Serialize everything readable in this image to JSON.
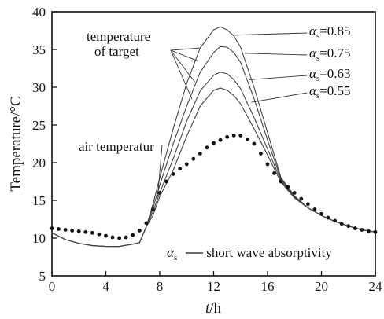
{
  "chart_data": {
    "type": "line",
    "title": "",
    "xlabel": {
      "var": "t",
      "unit": "/h"
    },
    "ylabel": "Temperature/°C",
    "xlim": [
      0,
      24
    ],
    "ylim": [
      5,
      40
    ],
    "xticks": [
      0,
      4,
      8,
      12,
      16,
      20,
      24
    ],
    "yticks": [
      5,
      10,
      15,
      20,
      25,
      30,
      35,
      40
    ],
    "grid": false,
    "annotations": {
      "target_label_line1": "temperature",
      "target_label_line2": "of target",
      "air_label": "air temperatur",
      "alpha_symbol": "α",
      "alpha_sub": "s",
      "legend_text": " short wave absorptivity"
    },
    "series": [
      {
        "name": "=0.85",
        "style": "line",
        "x": [
          0,
          1,
          2,
          3,
          4,
          5,
          6,
          6.5,
          7,
          7.5,
          8,
          9,
          10,
          11,
          12,
          12.5,
          13,
          13.5,
          14,
          15,
          16,
          17,
          18,
          19,
          20,
          21,
          22,
          23,
          24
        ],
        "y": [
          10.7,
          9.8,
          9.3,
          9.0,
          8.9,
          8.9,
          9.2,
          9.4,
          11.5,
          14.5,
          18.0,
          24.5,
          30.5,
          35.2,
          37.6,
          38.0,
          37.6,
          36.8,
          35.3,
          30.0,
          24.0,
          18.0,
          15.6,
          14.0,
          13.0,
          12.2,
          11.6,
          11.1,
          10.8
        ]
      },
      {
        "name": "=0.75",
        "style": "line",
        "x": [
          0,
          1,
          2,
          3,
          4,
          5,
          6,
          6.5,
          7,
          7.5,
          8,
          9,
          10,
          11,
          12,
          12.5,
          13,
          13.5,
          14,
          15,
          16,
          17,
          18,
          19,
          20,
          21,
          22,
          23,
          24
        ],
        "y": [
          10.7,
          9.8,
          9.3,
          9.0,
          8.9,
          8.9,
          9.2,
          9.4,
          11.5,
          14.0,
          17.0,
          22.5,
          27.5,
          32.0,
          34.6,
          35.4,
          35.3,
          34.6,
          33.3,
          28.5,
          23.0,
          17.8,
          15.5,
          14.0,
          13.0,
          12.2,
          11.6,
          11.1,
          10.8
        ]
      },
      {
        "name": "=0.63",
        "style": "line",
        "x": [
          0,
          1,
          2,
          3,
          4,
          5,
          6,
          6.5,
          7,
          7.5,
          8,
          9,
          10,
          11,
          12,
          12.5,
          13,
          13.5,
          14,
          15,
          16,
          17,
          18,
          19,
          20,
          21,
          22,
          23,
          24
        ],
        "y": [
          10.7,
          9.8,
          9.3,
          9.0,
          8.9,
          8.9,
          9.2,
          9.4,
          11.5,
          13.5,
          16.0,
          20.5,
          25.5,
          29.5,
          31.6,
          32.0,
          31.8,
          31.0,
          29.8,
          26.0,
          21.8,
          17.6,
          15.4,
          14.0,
          13.0,
          12.2,
          11.6,
          11.1,
          10.8
        ]
      },
      {
        "name": "=0.55",
        "style": "line",
        "x": [
          0,
          1,
          2,
          3,
          4,
          5,
          6,
          6.5,
          7,
          7.5,
          8,
          9,
          10,
          11,
          12,
          12.5,
          13,
          13.5,
          14,
          15,
          16,
          17,
          18,
          19,
          20,
          21,
          22,
          23,
          24
        ],
        "y": [
          10.7,
          9.8,
          9.3,
          9.0,
          8.9,
          8.9,
          9.2,
          9.4,
          11.5,
          13.0,
          15.5,
          19.0,
          23.5,
          27.5,
          29.6,
          29.9,
          29.6,
          28.9,
          27.8,
          24.5,
          21.0,
          17.4,
          15.3,
          14.0,
          13.0,
          12.2,
          11.6,
          11.1,
          10.8
        ]
      },
      {
        "name": "air temperatur",
        "style": "dots",
        "x": [
          0,
          0.5,
          1,
          1.5,
          2,
          2.5,
          3,
          3.5,
          4,
          4.5,
          5,
          5.5,
          6,
          6.5,
          7,
          7.5,
          8,
          8.5,
          9,
          9.5,
          10,
          10.5,
          11,
          11.5,
          12,
          12.5,
          13,
          13.5,
          14,
          14.5,
          15,
          15.5,
          16,
          16.5,
          17,
          17.5,
          18,
          18.5,
          19,
          19.5,
          20,
          20.5,
          21,
          21.5,
          22,
          22.5,
          23,
          23.5,
          24
        ],
        "y": [
          11.3,
          11.2,
          11.1,
          11.0,
          10.9,
          10.8,
          10.7,
          10.5,
          10.3,
          10.1,
          10.0,
          10.1,
          10.4,
          11.0,
          12.0,
          13.8,
          16.0,
          17.5,
          18.5,
          19.2,
          19.8,
          20.5,
          21.2,
          22.0,
          22.6,
          23.0,
          23.4,
          23.6,
          23.6,
          23.1,
          22.5,
          21.2,
          19.8,
          18.6,
          17.5,
          16.8,
          16.0,
          15.2,
          14.5,
          13.8,
          13.2,
          12.7,
          12.3,
          11.9,
          11.6,
          11.3,
          11.1,
          10.9,
          10.8
        ]
      }
    ]
  }
}
